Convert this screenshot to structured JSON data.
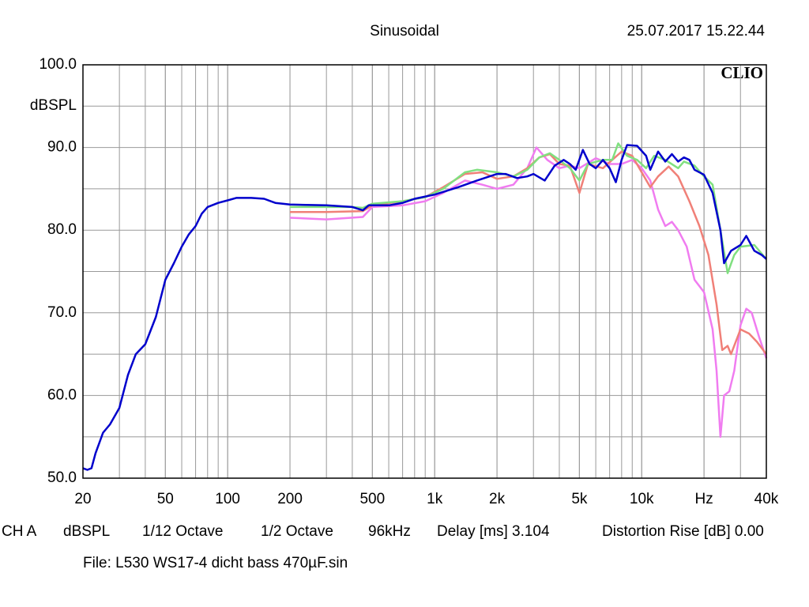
{
  "chart_data": {
    "type": "line",
    "title": "Sinusoidal",
    "date": "25.07.2017 15.22.44",
    "logo": "CLIO",
    "y_label": "dBSPL",
    "footer": [
      "CH A",
      "dBSPL",
      "1/12 Octave",
      "1/2 Octave",
      "96kHz",
      "Delay [ms] 3.104",
      "Distortion Rise [dB] 0.00"
    ],
    "file": "File: L530 WS17-4 dicht bass 470µF.sin",
    "xlog": true,
    "grid": true,
    "xlim": [
      20,
      40000
    ],
    "ylim": [
      50,
      100
    ],
    "xticks": [
      20,
      50,
      100,
      200,
      500,
      {
        "value": 1000,
        "label": "1k"
      },
      {
        "value": 2000,
        "label": "2k"
      },
      {
        "value": 5000,
        "label": "5k"
      },
      {
        "value": 10000,
        "label": "10k"
      },
      {
        "value": 20000,
        "label": "Hz"
      },
      {
        "value": 40000,
        "label": "40k"
      }
    ],
    "yticks": [
      {
        "value": 50,
        "label": "50.0"
      },
      {
        "value": 60,
        "label": "60.0"
      },
      {
        "value": 70,
        "label": "70.0"
      },
      {
        "value": 80,
        "label": "80.0"
      },
      {
        "value": 90,
        "label": "90.0"
      },
      {
        "value": 100,
        "label": "100.0"
      }
    ],
    "series": [
      {
        "color": "#f07cf0",
        "x": [
          200,
          300,
          450,
          500,
          700,
          900,
          1100,
          1400,
          1700,
          2000,
          2400,
          2800,
          3100,
          3500,
          4000,
          4500,
          5000,
          6000,
          7000,
          8000,
          9000,
          10000,
          11000,
          12000,
          13000,
          14000,
          15000,
          16500,
          18000,
          20000,
          22000,
          23000,
          24000,
          25000,
          26500,
          28000,
          30000,
          32000,
          34000,
          37000,
          40000
        ],
        "values": [
          81.5,
          81.3,
          81.6,
          82.8,
          83,
          83.5,
          84.5,
          86,
          85.5,
          85,
          85.5,
          87.5,
          90,
          88.5,
          87.5,
          87.8,
          87.5,
          88.7,
          88,
          88,
          88.5,
          87.5,
          86,
          82.5,
          80.5,
          81,
          80,
          78,
          74,
          72.5,
          68,
          63,
          55,
          60,
          60.5,
          63,
          68.5,
          70.5,
          70,
          67,
          64.5
        ]
      },
      {
        "color": "#f08078",
        "x": [
          200,
          300,
          450,
          500,
          700,
          900,
          1100,
          1400,
          1700,
          2000,
          2400,
          2800,
          3200,
          3600,
          4000,
          4500,
          5000,
          5500,
          6500,
          7200,
          8000,
          9000,
          10000,
          11000,
          12000,
          13500,
          15000,
          17000,
          19000,
          21000,
          23000,
          24500,
          26000,
          27000,
          30000,
          33000,
          36000,
          40000
        ],
        "values": [
          82.2,
          82.2,
          82.3,
          83,
          83.5,
          84,
          85.2,
          86.8,
          87,
          86.2,
          86.5,
          87.5,
          88.8,
          89.2,
          88,
          87.8,
          84.5,
          88,
          87.5,
          88.5,
          89.5,
          89,
          87,
          85.2,
          86.5,
          87.7,
          86.5,
          83.5,
          80.5,
          77,
          71,
          65.5,
          66,
          65,
          68,
          67.5,
          66.5,
          65
        ]
      },
      {
        "color": "#80e080",
        "x": [
          200,
          400,
          450,
          500,
          700,
          900,
          1100,
          1400,
          1600,
          2000,
          2400,
          2800,
          3200,
          3600,
          4000,
          4500,
          5000,
          5500,
          6500,
          7200,
          7700,
          8500,
          9500,
          10500,
          11500,
          13000,
          15000,
          16000,
          18000,
          20000,
          22000,
          24000,
          26000,
          28000,
          30000,
          35000,
          40000
        ],
        "values": [
          82.8,
          82.8,
          82.7,
          83.2,
          83.5,
          84,
          85,
          87,
          87.3,
          87,
          86.5,
          87.3,
          88.8,
          89.3,
          88.5,
          87.5,
          86,
          88,
          88.5,
          88.5,
          90.5,
          89,
          88.5,
          87.5,
          89,
          88.5,
          87.5,
          88.3,
          87.8,
          86.5,
          85.5,
          80,
          74.8,
          77,
          78,
          78.2,
          76.5
        ]
      },
      {
        "color": "#0000cc",
        "x": [
          20,
          21,
          22,
          23,
          25,
          27,
          30,
          33,
          36,
          40,
          45,
          50,
          55,
          60,
          65,
          70,
          75,
          80,
          90,
          100,
          110,
          130,
          150,
          170,
          200,
          300,
          400,
          450,
          480,
          600,
          700,
          800,
          1000,
          1300,
          1600,
          2000,
          2200,
          2500,
          2800,
          3000,
          3400,
          3800,
          4200,
          4500,
          4800,
          5200,
          5600,
          6000,
          6500,
          7000,
          7500,
          8000,
          8500,
          9500,
          10500,
          11000,
          12000,
          13000,
          14000,
          15000,
          16000,
          17000,
          18000,
          20000,
          22000,
          24000,
          25000,
          27000,
          30000,
          32000,
          35000,
          38000,
          40000
        ],
        "values": [
          51.2,
          51,
          51.2,
          53,
          55.5,
          56.5,
          58.5,
          62.5,
          65,
          66.2,
          69.5,
          74,
          76,
          78,
          79.5,
          80.5,
          82,
          82.8,
          83.3,
          83.6,
          83.9,
          83.9,
          83.8,
          83.3,
          83.1,
          83,
          82.8,
          82.4,
          83,
          83,
          83.3,
          83.8,
          84.3,
          85.2,
          86,
          86.8,
          86.8,
          86.3,
          86.5,
          86.8,
          86,
          87.8,
          88.5,
          88,
          87.3,
          89.7,
          88,
          87.5,
          88.5,
          87.5,
          85.8,
          88.5,
          90.3,
          90.2,
          89,
          87.3,
          89.5,
          88.3,
          89.2,
          88.3,
          88.8,
          88.5,
          87.3,
          86.7,
          84.5,
          80,
          76,
          77.5,
          78.2,
          79.3,
          77.5,
          77,
          76.5
        ]
      }
    ]
  }
}
